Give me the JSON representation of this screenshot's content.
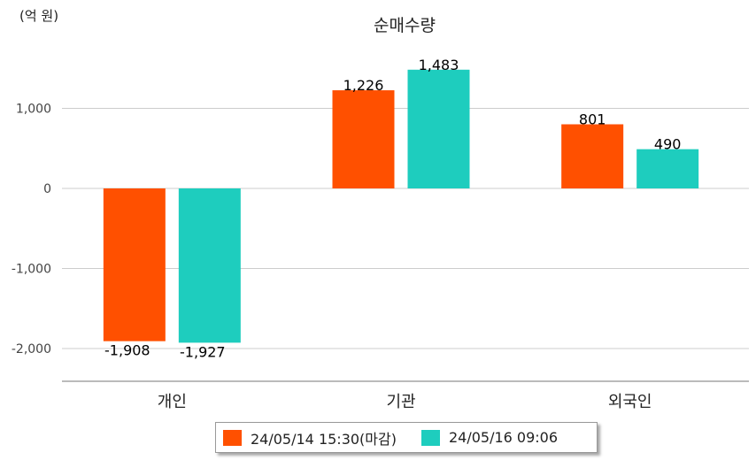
{
  "chart_data": {
    "type": "bar",
    "title": "순매수량",
    "unit_label": "(억 원)",
    "categories": [
      "개인",
      "기관",
      "외국인"
    ],
    "series": [
      {
        "name": "24/05/14 15:30(마감)",
        "color": "#ff5000",
        "values": [
          -1908,
          1226,
          801
        ],
        "labels": [
          "-1,908",
          "1,226",
          "801"
        ]
      },
      {
        "name": "24/05/16 09:06",
        "color": "#1ecdbe",
        "values": [
          -1927,
          1483,
          490
        ],
        "labels": [
          "-1,927",
          "1,483",
          "490"
        ]
      }
    ],
    "yticks": [
      1000,
      0,
      -1000,
      -2000
    ],
    "ytick_labels": [
      "1,000",
      "0",
      "-1,000",
      "-2,000"
    ],
    "ylim": [
      -2400,
      1600
    ],
    "grid": true,
    "legend_position": "bottom"
  }
}
